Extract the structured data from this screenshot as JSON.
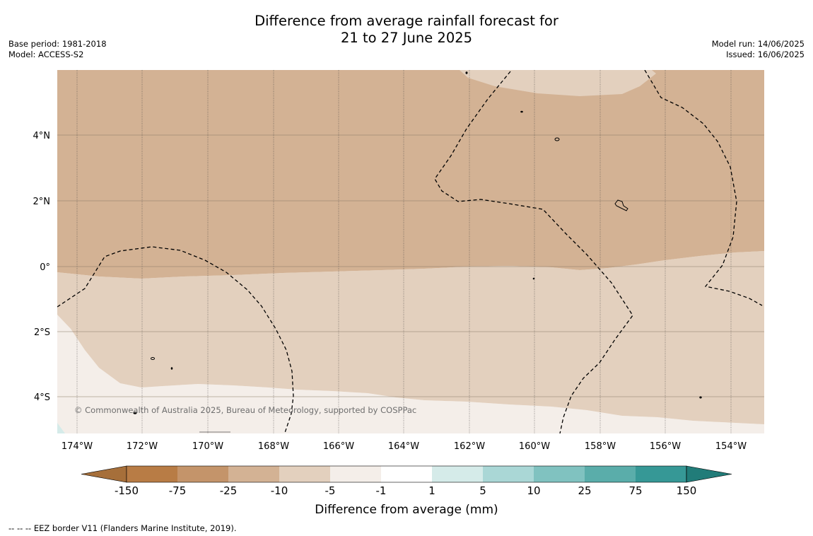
{
  "title": {
    "line1": "Difference from average rainfall forecast for",
    "line2": "21 to 27 June 2025"
  },
  "meta_left": {
    "base_period": "Base period: 1981-2018",
    "model": "Model: ACCESS-S2"
  },
  "meta_right": {
    "model_run": "Model run: 14/06/2025",
    "issued": "Issued: 16/06/2025"
  },
  "map": {
    "lat_labels": [
      "4°N",
      "2°N",
      "0°",
      "2°S",
      "4°S"
    ],
    "lon_labels": [
      "174°W",
      "172°W",
      "170°W",
      "168°W",
      "166°W",
      "164°W",
      "162°W",
      "160°W",
      "158°W",
      "156°W",
      "154°W"
    ],
    "copyright": "© Commonwealth of Australia 2025, Bureau of Meteorology, supported by COSPPac"
  },
  "legend": {
    "title": "Difference from average (mm)",
    "tick_labels": [
      "-150",
      "-75",
      "-25",
      "-10",
      "-5",
      "-1",
      "1",
      "5",
      "10",
      "25",
      "75",
      "150"
    ],
    "colors": [
      "#a66f3a",
      "#b87c45",
      "#c4946a",
      "#d3b294",
      "#e3d0be",
      "#f4eee9",
      "#ffffff",
      "#d5ebe9",
      "#aad7d6",
      "#80c2c0",
      "#5aadaa",
      "#369896",
      "#217c79"
    ]
  },
  "footer": {
    "eez_note": "--  --  -- EEZ border V11 (Flanders Marine Institute, 2019)."
  }
}
